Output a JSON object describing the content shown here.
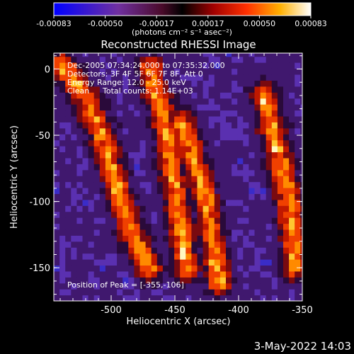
{
  "colorbar": {
    "ticks": [
      "-0.00083",
      "-0.00050",
      "-0.00017",
      "0.00017",
      "0.00050",
      "0.00083"
    ],
    "units_label": "(photons cm⁻² s⁻¹ asec⁻²)"
  },
  "chart_data": {
    "type": "heatmap",
    "title": "Reconstructed RHESSI Image",
    "xlabel": "Heliocentric X (arcsec)",
    "ylabel": "Heliocentric Y (arcsec)",
    "xlim": [
      -545,
      -350
    ],
    "ylim": [
      -175,
      12
    ],
    "zlim": [
      -0.00083,
      0.00083
    ],
    "x_ticks": [
      "-500",
      "-450",
      "-400",
      "-350"
    ],
    "x_tick_values": [
      -500,
      -450,
      -400,
      -350
    ],
    "y_ticks": [
      "0",
      "-50",
      "-100",
      "-150"
    ],
    "y_tick_values": [
      0,
      -50,
      -100,
      -150
    ],
    "colormap": "red-temperature (blue-purple for negative, red-orange-yellow-white for positive)",
    "annotations": [
      "Dec-2005 07:34:24.000 to 07:35:32.000",
      "Detectors: 3F 4F 5F 6F 7F 8F, Att 0",
      "Energy Range: 12.0 - 25.0 keV",
      "Clean",
      "Total counts: 1.14E+03"
    ],
    "peak_label": "Position of Peak = [-355,-106]",
    "peak": {
      "x": -355,
      "y": -106
    },
    "bright_ridges": [
      {
        "x": [
          -540,
          -520,
          -505,
          -495,
          -485,
          -470
        ],
        "y": [
          5,
          -20,
          -55,
          -90,
          -120,
          -150
        ]
      },
      {
        "x": [
          -470,
          -460,
          -455,
          -450,
          -445,
          -440
        ],
        "y": [
          0,
          -30,
          -60,
          -90,
          -120,
          -150
        ]
      },
      {
        "x": [
          -445,
          -435,
          -425,
          -420,
          -415
        ],
        "y": [
          -40,
          -70,
          -100,
          -130,
          -160
        ]
      },
      {
        "x": [
          -380,
          -370,
          -360,
          -355
        ],
        "y": [
          -20,
          -60,
          -100,
          -150
        ]
      }
    ]
  },
  "footer": {
    "timestamp": "3-May-2022 14:03"
  }
}
